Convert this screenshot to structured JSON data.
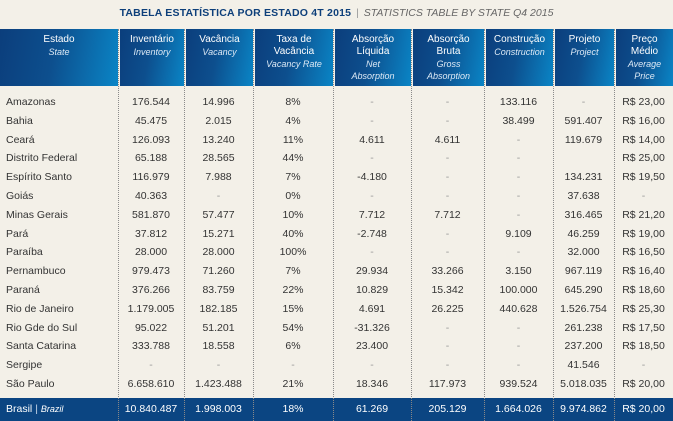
{
  "title": {
    "main": "TABELA ESTATÍSTICA POR ESTADO 4T 2015",
    "separator": "|",
    "sub": "STATISTICS TABLE BY STATE Q4 2015"
  },
  "columns": [
    {
      "pt": [
        "Estado"
      ],
      "en": [
        "State"
      ]
    },
    {
      "pt": [
        "Inventário"
      ],
      "en": [
        "Inventory"
      ]
    },
    {
      "pt": [
        "Vacância"
      ],
      "en": [
        "Vacancy"
      ]
    },
    {
      "pt": [
        "Taxa de",
        "Vacância"
      ],
      "en": [
        "Vacancy Rate"
      ]
    },
    {
      "pt": [
        "Absorção",
        "Líquida"
      ],
      "en": [
        "Net",
        "Absorption"
      ]
    },
    {
      "pt": [
        "Absorção",
        "Bruta"
      ],
      "en": [
        "Gross",
        "Absorption"
      ]
    },
    {
      "pt": [
        "Construção"
      ],
      "en": [
        "Construction"
      ]
    },
    {
      "pt": [
        "Projeto"
      ],
      "en": [
        "Project"
      ]
    },
    {
      "pt": [
        "Preço",
        "Médio"
      ],
      "en": [
        "Average",
        "Price"
      ]
    }
  ],
  "rows": [
    [
      "Amazonas",
      "176.544",
      "14.996",
      "8%",
      "-",
      "-",
      "133.116",
      "-",
      "R$ 23,00"
    ],
    [
      "Bahia",
      "45.475",
      "2.015",
      "4%",
      "-",
      "-",
      "38.499",
      "591.407",
      "R$ 16,00"
    ],
    [
      "Ceará",
      "126.093",
      "13.240",
      "11%",
      "4.611",
      "4.611",
      "-",
      "119.679",
      "R$ 14,00"
    ],
    [
      "Distrito Federal",
      "65.188",
      "28.565",
      "44%",
      "-",
      "-",
      "-",
      "",
      "R$ 25,00"
    ],
    [
      "Espírito Santo",
      "116.979",
      "7.988",
      "7%",
      "-4.180",
      "-",
      "-",
      "134.231",
      "R$ 19,50"
    ],
    [
      "Goiás",
      "40.363",
      "-",
      "0%",
      "-",
      "-",
      "-",
      "37.638",
      "-"
    ],
    [
      "Minas Gerais",
      "581.870",
      "57.477",
      "10%",
      "7.712",
      "7.712",
      "-",
      "316.465",
      "R$ 21,20"
    ],
    [
      "Pará",
      "37.812",
      "15.271",
      "40%",
      "-2.748",
      "-",
      "9.109",
      "46.259",
      "R$ 19,00"
    ],
    [
      "Paraíba",
      "28.000",
      "28.000",
      "100%",
      "-",
      "-",
      "-",
      "32.000",
      "R$ 16,50"
    ],
    [
      "Pernambuco",
      "979.473",
      "71.260",
      "7%",
      "29.934",
      "33.266",
      "3.150",
      "967.119",
      "R$ 16,40"
    ],
    [
      "Paraná",
      "376.266",
      "83.759",
      "22%",
      "10.829",
      "15.342",
      "100.000",
      "645.290",
      "R$ 18,60"
    ],
    [
      "Rio de Janeiro",
      "1.179.005",
      "182.185",
      "15%",
      "4.691",
      "26.225",
      "440.628",
      "1.526.754",
      "R$ 25,30"
    ],
    [
      "Rio Gde do Sul",
      "95.022",
      "51.201",
      "54%",
      "-31.326",
      "-",
      "-",
      "261.238",
      "R$ 17,50"
    ],
    [
      "Santa Catarina",
      "333.788",
      "18.558",
      "6%",
      "23.400",
      "-",
      "-",
      "237.200",
      "R$ 18,50"
    ],
    [
      "Sergipe",
      "-",
      "-",
      "-",
      "-",
      "-",
      "-",
      "41.546",
      "-"
    ],
    [
      "São Paulo",
      "6.658.610",
      "1.423.488",
      "21%",
      "18.346",
      "117.973",
      "939.524",
      "5.018.035",
      "R$ 20,00"
    ]
  ],
  "total": {
    "state_pt": "Brasil",
    "separator": "|",
    "state_en": "Brazil",
    "values": [
      "10.840.487",
      "1.998.003",
      "18%",
      "61.269",
      "205.129",
      "1.664.026",
      "9.974.862",
      "R$ 20,00"
    ]
  }
}
